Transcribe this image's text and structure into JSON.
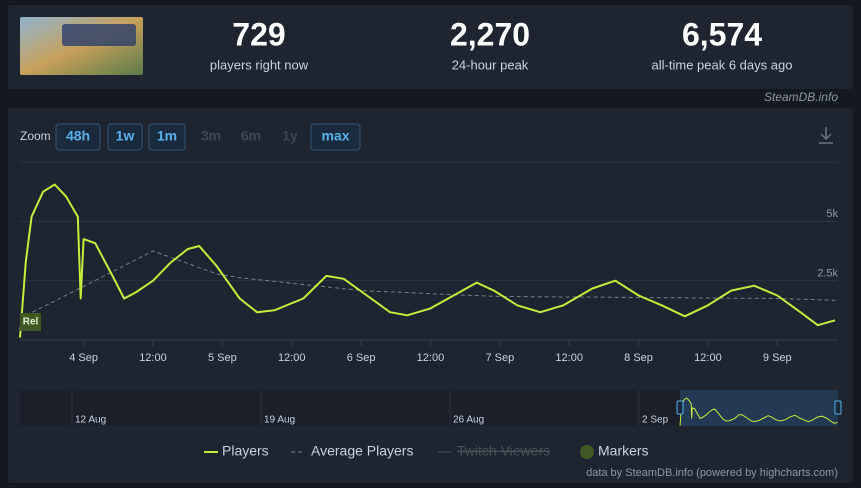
{
  "stats": [
    {
      "value": "729",
      "label": "players right now"
    },
    {
      "value": "2,270",
      "label": "24-hour peak"
    },
    {
      "value": "6,574",
      "label": "all-time peak 6 days ago"
    }
  ],
  "watermark": "SteamDB.info",
  "zoom": {
    "label": "Zoom",
    "buttons": [
      {
        "label": "48h",
        "enabled": true
      },
      {
        "label": "1w",
        "enabled": true
      },
      {
        "label": "1m",
        "enabled": true
      },
      {
        "label": "3m",
        "enabled": false
      },
      {
        "label": "6m",
        "enabled": false
      },
      {
        "label": "1y",
        "enabled": false
      },
      {
        "label": "max",
        "enabled": true
      }
    ]
  },
  "chart_data": {
    "type": "line",
    "x": [
      "3 Sep 13:00",
      "3 Sep 14:00",
      "3 Sep 15:00",
      "3 Sep 17:00",
      "3 Sep 19:00",
      "3 Sep 21:00",
      "3 Sep 23:00",
      "3 Sep 23:30",
      "4 Sep 00:00",
      "4 Sep 02:00",
      "4 Sep 05:00",
      "4 Sep 07:00",
      "4 Sep 09:00",
      "4 Sep 12:00",
      "4 Sep 15:00",
      "4 Sep 18:00",
      "4 Sep 20:00",
      "4 Sep 23:00",
      "5 Sep 03:00",
      "5 Sep 06:00",
      "5 Sep 09:00",
      "5 Sep 14:00",
      "5 Sep 18:00",
      "5 Sep 21:00",
      "6 Sep 01:00",
      "6 Sep 05:00",
      "6 Sep 08:00",
      "6 Sep 12:00",
      "6 Sep 16:00",
      "6 Sep 20:00",
      "6 Sep 23:00",
      "7 Sep 03:00",
      "7 Sep 07:00",
      "7 Sep 11:00",
      "7 Sep 16:00",
      "7 Sep 20:00",
      "8 Sep 00:00",
      "8 Sep 04:00",
      "8 Sep 08:00",
      "8 Sep 12:00",
      "8 Sep 16:00",
      "8 Sep 20:00",
      "9 Sep 00:00",
      "9 Sep 04:00",
      "9 Sep 07:00",
      "9 Sep 10:00"
    ],
    "series": [
      {
        "name": "Players",
        "color": "#c8ec3c",
        "values": [
          100,
          3300,
          5200,
          6250,
          6550,
          6040,
          5200,
          1750,
          4250,
          4080,
          2700,
          1750,
          2000,
          2500,
          3250,
          3830,
          3960,
          3120,
          1750,
          1170,
          1250,
          1750,
          2700,
          2580,
          1875,
          1170,
          1040,
          1330,
          1875,
          2420,
          2080,
          1460,
          1170,
          1460,
          2170,
          2500,
          1875,
          1460,
          1000,
          1460,
          2080,
          2290,
          1875,
          1170,
          625,
          830
        ]
      },
      {
        "name": "Average Players",
        "color": "#7a7f87",
        "dashed": true,
        "values": [
          900,
          1020,
          1150,
          1400,
          1640,
          1890,
          2140,
          2200,
          2260,
          2510,
          2880,
          3130,
          3380,
          3750,
          3490,
          3230,
          3050,
          2790,
          2620,
          2550,
          2470,
          2340,
          2240,
          2160,
          2070,
          2030,
          2000,
          1950,
          1910,
          1870,
          1840,
          1830,
          1820,
          1810,
          1810,
          1800,
          1790,
          1780,
          1780,
          1770,
          1760,
          1760,
          1750,
          1720,
          1700,
          1670
        ]
      },
      {
        "name": "Twitch Viewers",
        "color": "#4a4f58",
        "visible": false
      }
    ],
    "markers": {
      "name": "Markers",
      "color": "#3f5a25",
      "items": [
        {
          "x": "3 Sep 13:00",
          "label": "Rel"
        }
      ]
    },
    "xlim": [
      "3 Sep 13:00",
      "9 Sep 10:30"
    ],
    "xticks": [
      {
        "value": "4 Sep 00:00",
        "label": "4 Sep"
      },
      {
        "value": "4 Sep 12:00",
        "label": "12:00"
      },
      {
        "value": "5 Sep 00:00",
        "label": "5 Sep"
      },
      {
        "value": "5 Sep 12:00",
        "label": "12:00"
      },
      {
        "value": "6 Sep 00:00",
        "label": "6 Sep"
      },
      {
        "value": "6 Sep 12:00",
        "label": "12:00"
      },
      {
        "value": "7 Sep 00:00",
        "label": "7 Sep"
      },
      {
        "value": "7 Sep 12:00",
        "label": "12:00"
      },
      {
        "value": "8 Sep 00:00",
        "label": "8 Sep"
      },
      {
        "value": "8 Sep 12:00",
        "label": "12:00"
      },
      {
        "value": "9 Sep 00:00",
        "label": "9 Sep"
      }
    ],
    "ylim": [
      0,
      7500
    ],
    "yticks": [
      {
        "value": 2500,
        "label": "2.5k"
      },
      {
        "value": 5000,
        "label": "5k"
      }
    ],
    "grid": true,
    "legend": "bottom",
    "navigator": {
      "labels": [
        "12 Aug",
        "19 Aug",
        "26 Aug",
        "2 Sep"
      ]
    },
    "credits": "data by SteamDB.info (powered by highcharts.com)"
  }
}
